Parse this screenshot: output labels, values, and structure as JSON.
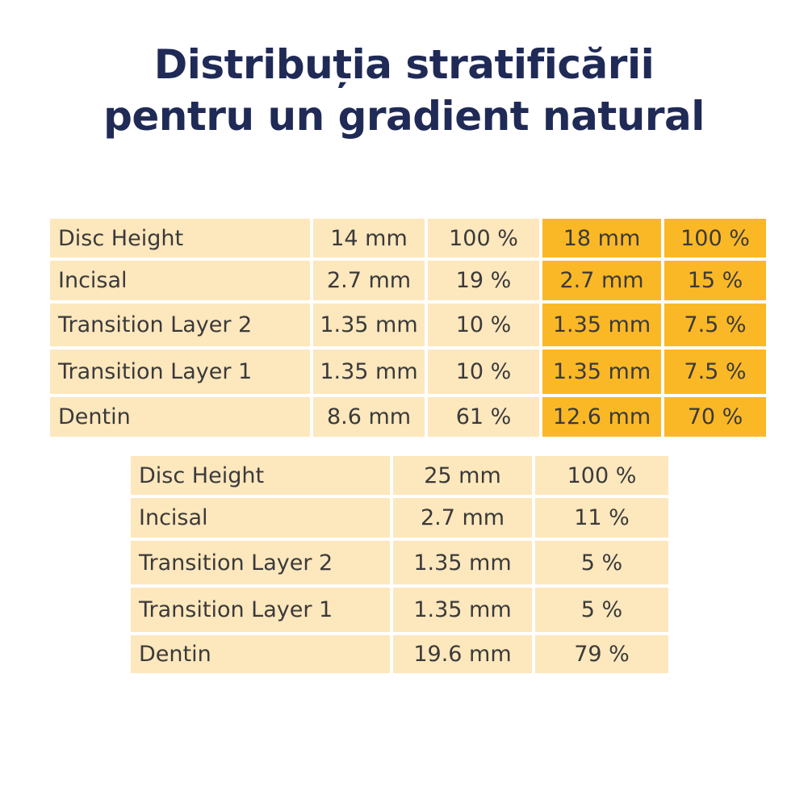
{
  "title": {
    "line1": "Distribuția stratificării",
    "line2": "pentru un gradient natural"
  },
  "colors": {
    "title": "#1f2a56",
    "cell_light": "#fde7bd",
    "cell_highlight": "#fbb826",
    "text": "#3a3a3a"
  },
  "table_top": {
    "rows": [
      {
        "label": "Disc Height",
        "v1": "14 mm",
        "p1": "100 %",
        "v2": "18 mm",
        "p2": "100 %"
      },
      {
        "label": "Incisal",
        "v1": "2.7 mm",
        "p1": "19 %",
        "v2": "2.7 mm",
        "p2": "15 %"
      },
      {
        "label": "Transition Layer 2",
        "v1": "1.35 mm",
        "p1": "10 %",
        "v2": "1.35 mm",
        "p2": "7.5 %"
      },
      {
        "label": "Transition Layer 1",
        "v1": "1.35 mm",
        "p1": "10 %",
        "v2": "1.35 mm",
        "p2": "7.5 %"
      },
      {
        "label": "Dentin",
        "v1": "8.6 mm",
        "p1": "61 %",
        "v2": "12.6 mm",
        "p2": "70 %"
      }
    ]
  },
  "table_bottom": {
    "rows": [
      {
        "label": "Disc Height",
        "v": "25 mm",
        "p": "100 %"
      },
      {
        "label": "Incisal",
        "v": "2.7 mm",
        "p": "11 %"
      },
      {
        "label": "Transition Layer 2",
        "v": "1.35 mm",
        "p": "5 %"
      },
      {
        "label": "Transition Layer 1",
        "v": "1.35 mm",
        "p": "5 %"
      },
      {
        "label": "Dentin",
        "v": "19.6 mm",
        "p": "79 %"
      }
    ]
  }
}
